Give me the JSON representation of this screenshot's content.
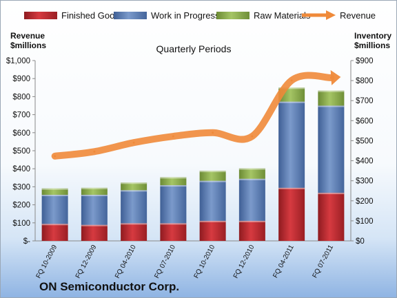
{
  "chart_data": {
    "type": "bar",
    "title": "Quarterly Periods",
    "subtitle": "ON Semiconductor Corp.",
    "left_axis": {
      "label_line1": "Revenue",
      "label_line2": "$millions",
      "range": [
        0,
        1000
      ],
      "ticks": [
        "$-",
        "$100",
        "$200",
        "$300",
        "$400",
        "$500",
        "$600",
        "$700",
        "$800",
        "$900",
        "$1,000"
      ]
    },
    "right_axis": {
      "label_line1": "Inventory",
      "label_line2": "$millions",
      "range": [
        0,
        900
      ],
      "ticks": [
        "$0",
        "$100",
        "$200",
        "$300",
        "$400",
        "$500",
        "$600",
        "$700",
        "$800",
        "$900"
      ]
    },
    "categories": [
      "FQ 10-2009",
      "FQ 12-2009",
      "FQ 04-2010",
      "FQ 07-2010",
      "FQ 10-2010",
      "FQ 12-2010",
      "FQ 04-2011",
      "FQ 07-2011"
    ],
    "series": [
      {
        "name": "Finished Goods",
        "kind": "stacked-bar",
        "axis": "right",
        "color": "#c0262d",
        "values": [
          85,
          80,
          88,
          88,
          100,
          100,
          265,
          240
        ]
      },
      {
        "name": "Work in Progress",
        "kind": "stacked-bar",
        "axis": "right",
        "color": "#5b7fb6",
        "values": [
          145,
          150,
          165,
          190,
          200,
          210,
          430,
          435
        ]
      },
      {
        "name": "Raw Materials",
        "kind": "stacked-bar",
        "axis": "right",
        "color": "#8fb04e",
        "values": [
          32,
          35,
          38,
          40,
          50,
          52,
          70,
          75
        ]
      },
      {
        "name": "Revenue",
        "kind": "line",
        "axis": "left",
        "color": "#ef8a3a",
        "values": [
          470,
          495,
          545,
          580,
          600,
          580,
          890,
          905
        ]
      }
    ],
    "grid": false,
    "legend_position": "top"
  }
}
